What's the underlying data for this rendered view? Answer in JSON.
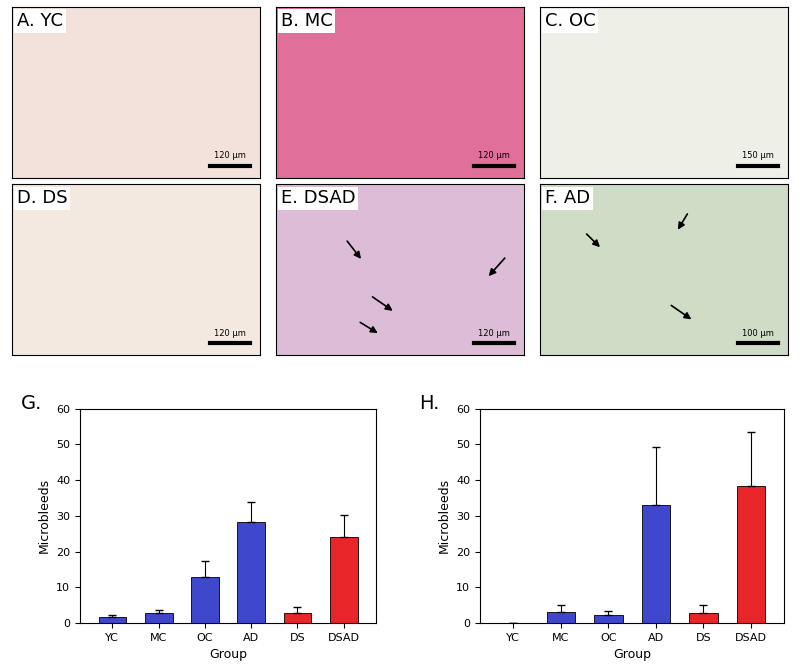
{
  "images": [
    {
      "label": "A. YC",
      "scale_bar": "120 µm"
    },
    {
      "label": "B. MC",
      "scale_bar": "120 µm"
    },
    {
      "label": "C. OC",
      "scale_bar": "150 µm"
    },
    {
      "label": "D. DS",
      "scale_bar": "120 µm"
    },
    {
      "label": "E. DSAD",
      "scale_bar": "120 µm"
    },
    {
      "label": "F. AD",
      "scale_bar": "100 µm"
    }
  ],
  "chart_data": [
    {
      "type": "bar",
      "title": "G.",
      "x_label": "Group",
      "y_label": "Microbleeds",
      "categories": [
        "YC",
        "MC",
        "OC",
        "AD",
        "DS",
        "DSAD"
      ],
      "values": [
        1.8,
        2.8,
        13,
        28.2,
        2.7,
        24
      ],
      "error": [
        0.6,
        1.0,
        4.5,
        5.8,
        1.8,
        6.3
      ],
      "colors": [
        "#3f48cc",
        "#3f48cc",
        "#3f48cc",
        "#3f48cc",
        "#e8262a",
        "#e8262a"
      ],
      "ylim": [
        0,
        60
      ],
      "yticks": [
        0,
        10,
        20,
        30,
        40,
        50,
        60
      ],
      "grid": false
    },
    {
      "type": "bar",
      "title": "H.",
      "x_label": "Group",
      "y_label": "Microbleeds",
      "categories": [
        "YC",
        "MC",
        "OC",
        "AD",
        "DS",
        "DSAD"
      ],
      "values": [
        0,
        3.2,
        2.3,
        33,
        2.7,
        38.3
      ],
      "error": [
        0,
        1.8,
        1.2,
        16.3,
        2.5,
        15.3
      ],
      "colors": [
        "#3f48cc",
        "#3f48cc",
        "#3f48cc",
        "#3f48cc",
        "#e8262a",
        "#e8262a"
      ],
      "ylim": [
        0,
        60
      ],
      "yticks": [
        0,
        10,
        20,
        30,
        40,
        50,
        60
      ],
      "grid": false
    }
  ]
}
